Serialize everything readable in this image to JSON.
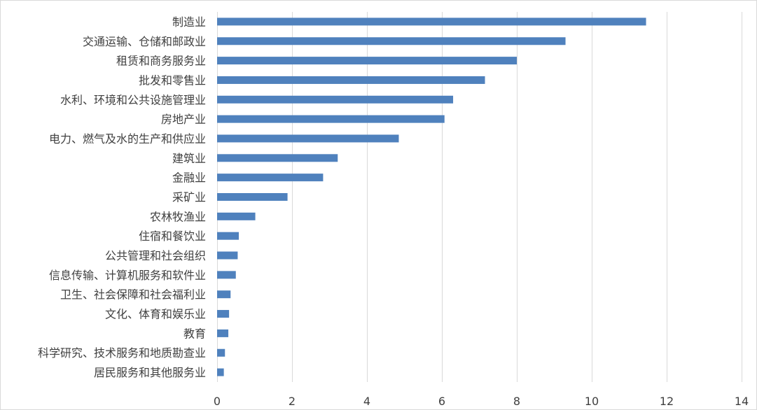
{
  "chart_data": {
    "type": "bar",
    "orientation": "horizontal",
    "categories": [
      "制造业",
      "交通运输、仓储和邮政业",
      "租赁和商务服务业",
      "批发和零售业",
      "水利、环境和公共设施管理业",
      "房地产业",
      "电力、燃气及水的生产和供应业",
      "建筑业",
      "金融业",
      "采矿业",
      "农林牧渔业",
      "住宿和餐饮业",
      "公共管理和社会组织",
      "信息传输、计算机服务和软件业",
      "卫生、社会保障和社会福利业",
      "文化、体育和娱乐业",
      "教育",
      "科学研究、技术服务和地质勘查业",
      "居民服务和其他服务业"
    ],
    "values": [
      11.45,
      9.3,
      8.0,
      7.15,
      6.3,
      6.07,
      4.85,
      3.22,
      2.83,
      1.88,
      1.02,
      0.58,
      0.55,
      0.5,
      0.36,
      0.32,
      0.3,
      0.21,
      0.18
    ],
    "xlim": [
      0,
      14
    ],
    "xticks": [
      0,
      2,
      4,
      6,
      8,
      10,
      12,
      14
    ],
    "title": "",
    "xlabel": "",
    "ylabel": "",
    "grid": "vertical",
    "bar_color": "#4f81bd",
    "grid_color": "#d9d9d9",
    "text_color": "#404040"
  }
}
